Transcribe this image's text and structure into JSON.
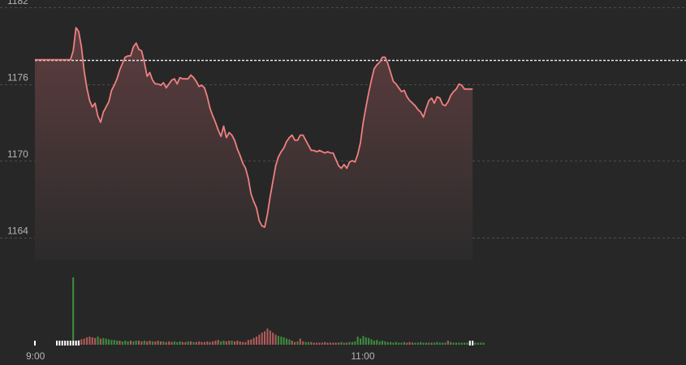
{
  "chart_data": {
    "type": "area",
    "y_ticks": [
      1164,
      1170,
      1176,
      1182
    ],
    "y_tick_labels": [
      "1164",
      "1170",
      "1176",
      "1182"
    ],
    "x_tick_labels": [
      "9:00",
      "11:00"
    ],
    "ylim": [
      1162.2,
      1182
    ],
    "reference_price": 1177.9,
    "grid": true,
    "colors": {
      "line": "#f08080",
      "area_top": "#5e3d3f",
      "area_bottom": "#2b2b2b",
      "reference": "#e6e6e6",
      "volume_up": "#3c8c3c",
      "volume_down": "#b15a5a",
      "grid": "#4d4d4d",
      "background": "#272727"
    },
    "price": [
      1177.9,
      1177.9,
      1177.9,
      1177.9,
      1177.9,
      1177.9,
      1177.9,
      1177.9,
      1177.9,
      1177.9,
      1177.9,
      1177.9,
      1177.9,
      1177.9,
      1178.6,
      1180.4,
      1180.1,
      1178.9,
      1177.0,
      1175.7,
      1174.7,
      1174.2,
      1174.5,
      1173.5,
      1173.0,
      1173.8,
      1174.2,
      1174.6,
      1175.5,
      1175.9,
      1176.4,
      1177.1,
      1177.6,
      1178.1,
      1178.2,
      1178.2,
      1178.9,
      1179.2,
      1178.7,
      1178.6,
      1177.7,
      1176.6,
      1176.9,
      1176.3,
      1176.0,
      1176.0,
      1175.9,
      1176.1,
      1175.7,
      1176.0,
      1176.3,
      1176.4,
      1176.0,
      1176.5,
      1176.4,
      1176.4,
      1176.4,
      1176.7,
      1176.5,
      1176.2,
      1175.8,
      1175.9,
      1175.7,
      1175.0,
      1174.1,
      1173.5,
      1173.0,
      1172.4,
      1171.9,
      1172.7,
      1171.8,
      1172.2,
      1172.0,
      1171.6,
      1170.9,
      1170.4,
      1169.8,
      1169.4,
      1168.6,
      1167.4,
      1166.8,
      1166.3,
      1165.3,
      1164.9,
      1164.8,
      1165.8,
      1167.2,
      1168.4,
      1169.6,
      1170.3,
      1170.7,
      1171.0,
      1171.5,
      1171.8,
      1172.0,
      1171.6,
      1171.6,
      1172.0,
      1172.0,
      1171.6,
      1171.2,
      1170.8,
      1170.8,
      1170.7,
      1170.8,
      1170.7,
      1170.6,
      1170.7,
      1170.6,
      1170.6,
      1170.1,
      1169.6,
      1169.4,
      1169.7,
      1169.4,
      1169.9,
      1170.0,
      1169.9,
      1170.5,
      1171.4,
      1173.0,
      1174.2,
      1175.3,
      1176.3,
      1177.2,
      1177.5,
      1177.7,
      1178.1,
      1178.1,
      1177.6,
      1176.9,
      1176.2,
      1176.0,
      1175.7,
      1175.4,
      1175.5,
      1175.0,
      1174.7,
      1174.5,
      1174.3,
      1174.0,
      1173.8,
      1173.4,
      1174.1,
      1174.7,
      1174.9,
      1174.5,
      1175.0,
      1174.9,
      1174.4,
      1174.3,
      1174.6,
      1175.1,
      1175.4,
      1175.6,
      1176.0,
      1175.9,
      1175.6,
      1175.6,
      1175.6,
      1175.6
    ],
    "volume_start_index": 14,
    "volume": [
      [
        100,
        "up"
      ],
      [
        5,
        "down"
      ],
      [
        7,
        "down"
      ],
      [
        8,
        "down"
      ],
      [
        9,
        "down"
      ],
      [
        11,
        "down"
      ],
      [
        12,
        "down"
      ],
      [
        11,
        "down"
      ],
      [
        10,
        "down"
      ],
      [
        12,
        "up"
      ],
      [
        9,
        "down"
      ],
      [
        10,
        "up"
      ],
      [
        9,
        "up"
      ],
      [
        8,
        "up"
      ],
      [
        7,
        "up"
      ],
      [
        7,
        "up"
      ],
      [
        6,
        "up"
      ],
      [
        6,
        "down"
      ],
      [
        5,
        "up"
      ],
      [
        6,
        "up"
      ],
      [
        5,
        "up"
      ],
      [
        6,
        "down"
      ],
      [
        5,
        "up"
      ],
      [
        6,
        "up"
      ],
      [
        6,
        "down"
      ],
      [
        5,
        "down"
      ],
      [
        6,
        "up"
      ],
      [
        5,
        "down"
      ],
      [
        6,
        "down"
      ],
      [
        5,
        "up"
      ],
      [
        5,
        "down"
      ],
      [
        6,
        "down"
      ],
      [
        5,
        "down"
      ],
      [
        5,
        "up"
      ],
      [
        4,
        "down"
      ],
      [
        5,
        "down"
      ],
      [
        4,
        "down"
      ],
      [
        5,
        "up"
      ],
      [
        4,
        "up"
      ],
      [
        5,
        "up"
      ],
      [
        4,
        "down"
      ],
      [
        4,
        "down"
      ],
      [
        5,
        "up"
      ],
      [
        5,
        "down"
      ],
      [
        4,
        "up"
      ],
      [
        4,
        "down"
      ],
      [
        5,
        "down"
      ],
      [
        4,
        "down"
      ],
      [
        4,
        "down"
      ],
      [
        5,
        "down"
      ],
      [
        4,
        "down"
      ],
      [
        5,
        "down"
      ],
      [
        6,
        "down"
      ],
      [
        7,
        "down"
      ],
      [
        5,
        "up"
      ],
      [
        6,
        "up"
      ],
      [
        5,
        "down"
      ],
      [
        6,
        "down"
      ],
      [
        6,
        "up"
      ],
      [
        5,
        "down"
      ],
      [
        6,
        "down"
      ],
      [
        5,
        "down"
      ],
      [
        4,
        "down"
      ],
      [
        4,
        "down"
      ],
      [
        7,
        "down"
      ],
      [
        8,
        "down"
      ],
      [
        10,
        "down"
      ],
      [
        12,
        "down"
      ],
      [
        15,
        "down"
      ],
      [
        18,
        "down"
      ],
      [
        20,
        "down"
      ],
      [
        24,
        "down"
      ],
      [
        21,
        "down"
      ],
      [
        18,
        "down"
      ],
      [
        15,
        "down"
      ],
      [
        13,
        "up"
      ],
      [
        12,
        "up"
      ],
      [
        11,
        "up"
      ],
      [
        9,
        "up"
      ],
      [
        8,
        "up"
      ],
      [
        6,
        "down"
      ],
      [
        4,
        "down"
      ],
      [
        5,
        "up"
      ],
      [
        9,
        "down"
      ],
      [
        5,
        "down"
      ],
      [
        4,
        "up"
      ],
      [
        4,
        "up"
      ],
      [
        4,
        "down"
      ],
      [
        3,
        "down"
      ],
      [
        3,
        "down"
      ],
      [
        3,
        "down"
      ],
      [
        3,
        "down"
      ],
      [
        4,
        "down"
      ],
      [
        3,
        "down"
      ],
      [
        3,
        "down"
      ],
      [
        3,
        "down"
      ],
      [
        3,
        "down"
      ],
      [
        3,
        "down"
      ],
      [
        4,
        "up"
      ],
      [
        3,
        "up"
      ],
      [
        3,
        "down"
      ],
      [
        4,
        "up"
      ],
      [
        4,
        "up"
      ],
      [
        5,
        "up"
      ],
      [
        12,
        "up"
      ],
      [
        9,
        "up"
      ],
      [
        13,
        "up"
      ],
      [
        11,
        "up"
      ],
      [
        10,
        "up"
      ],
      [
        8,
        "up"
      ],
      [
        6,
        "up"
      ],
      [
        7,
        "up"
      ],
      [
        5,
        "up"
      ],
      [
        6,
        "up"
      ],
      [
        5,
        "up"
      ],
      [
        4,
        "up"
      ],
      [
        4,
        "up"
      ],
      [
        3,
        "up"
      ],
      [
        4,
        "up"
      ],
      [
        3,
        "up"
      ],
      [
        3,
        "up"
      ],
      [
        4,
        "up"
      ],
      [
        3,
        "down"
      ],
      [
        4,
        "down"
      ],
      [
        3,
        "down"
      ],
      [
        3,
        "up"
      ],
      [
        3,
        "up"
      ],
      [
        4,
        "up"
      ],
      [
        3,
        "up"
      ],
      [
        3,
        "up"
      ],
      [
        3,
        "up"
      ],
      [
        3,
        "down"
      ],
      [
        3,
        "up"
      ],
      [
        4,
        "up"
      ],
      [
        3,
        "up"
      ],
      [
        3,
        "up"
      ],
      [
        3,
        "up"
      ],
      [
        6,
        "down"
      ],
      [
        4,
        "up"
      ],
      [
        3,
        "up"
      ],
      [
        3,
        "up"
      ],
      [
        3,
        "up"
      ],
      [
        3,
        "up"
      ],
      [
        3,
        "up"
      ],
      [
        3,
        "up"
      ],
      [
        3,
        "up"
      ],
      [
        3,
        "up"
      ],
      [
        3,
        "up"
      ],
      [
        3,
        "up"
      ],
      [
        3,
        "up"
      ],
      [
        3,
        "up"
      ]
    ]
  }
}
